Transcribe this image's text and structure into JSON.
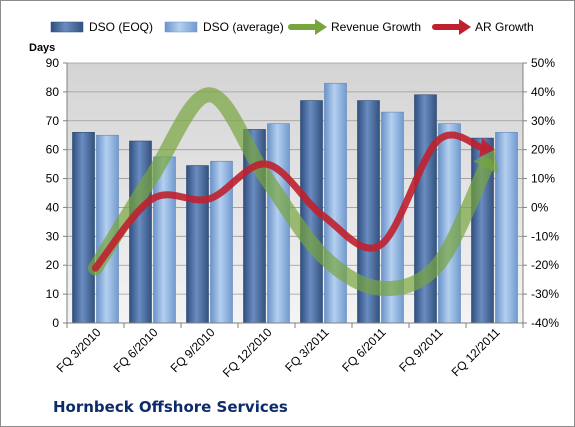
{
  "chart_data": {
    "type": "bar",
    "title": "",
    "company": "Hornbeck Offshore Services",
    "ylabel": "Days",
    "categories": [
      "FQ 3/2010",
      "FQ 6/2010",
      "FQ 9/2010",
      "FQ 12/2010",
      "FQ 3/2011",
      "FQ 6/2011",
      "FQ 9/2011",
      "FQ 12/2011"
    ],
    "ylim": [
      0,
      90
    ],
    "yticks": [
      "0",
      "10",
      "20",
      "30",
      "40",
      "50",
      "60",
      "70",
      "80",
      "90"
    ],
    "y2lim": [
      -40,
      50
    ],
    "y2ticks": [
      "-40%",
      "-30%",
      "-20%",
      "-10%",
      "0%",
      "10%",
      "20%",
      "30%",
      "40%",
      "50%"
    ],
    "grid": true,
    "legend_position": "top",
    "series": [
      {
        "name": "DSO (EOQ)",
        "type": "bar",
        "axis": "left",
        "color": "#4f6f9e",
        "values": [
          66,
          63,
          54.5,
          67,
          77,
          77,
          79,
          64
        ]
      },
      {
        "name": "DSO (average)",
        "type": "bar",
        "axis": "left",
        "color": "#8eb3e0",
        "values": [
          65,
          57.5,
          56,
          69,
          83,
          73,
          69,
          66
        ]
      },
      {
        "name": "Revenue Growth",
        "type": "line",
        "axis": "right",
        "color": "#77a53d",
        "values": [
          -21,
          11,
          39,
          10,
          -17,
          -28,
          -20,
          20
        ]
      },
      {
        "name": "AR Growth",
        "type": "line",
        "axis": "right",
        "color": "#c0202e",
        "values": [
          -21,
          3,
          3,
          15,
          -3,
          -13,
          23,
          20
        ]
      }
    ]
  }
}
